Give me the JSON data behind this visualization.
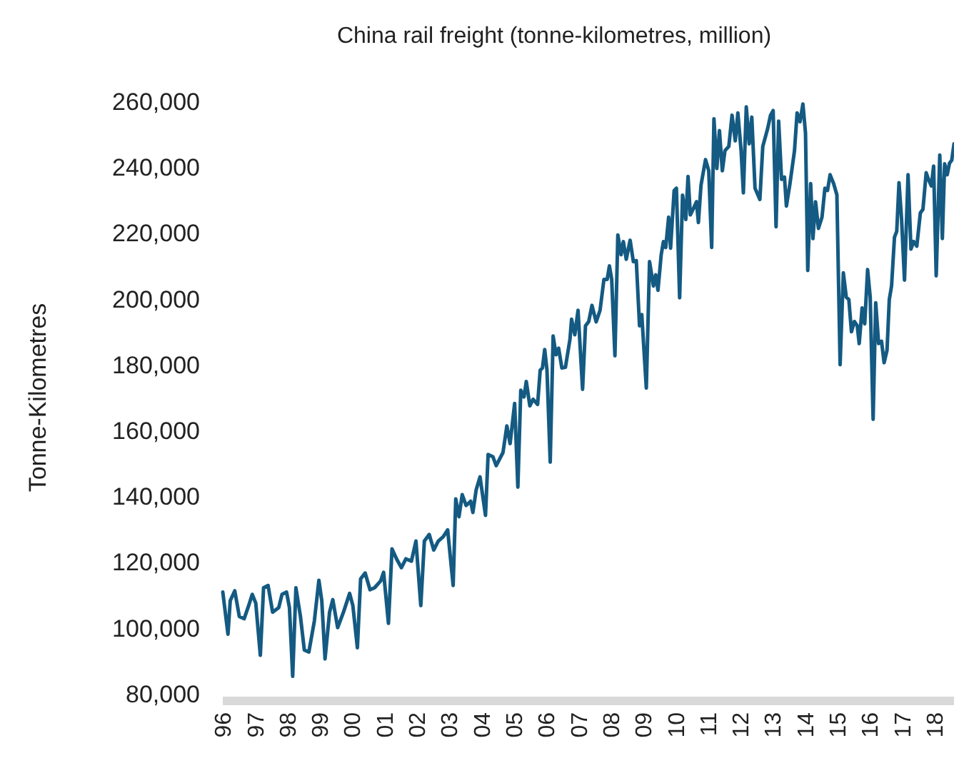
{
  "chart_data": {
    "type": "line",
    "title": "China rail freight (tonne-kilometres, million)",
    "ylabel": "Tonne-Kilometres",
    "xlim": [
      1996,
      2018.6
    ],
    "ylim": [
      80000,
      260000
    ],
    "xticks": [
      {
        "value": 1996,
        "label": "96"
      },
      {
        "value": 1997,
        "label": "97"
      },
      {
        "value": 1998,
        "label": "98"
      },
      {
        "value": 1999,
        "label": "99"
      },
      {
        "value": 2000,
        "label": "00"
      },
      {
        "value": 2001,
        "label": "01"
      },
      {
        "value": 2002,
        "label": "02"
      },
      {
        "value": 2003,
        "label": "03"
      },
      {
        "value": 2004,
        "label": "04"
      },
      {
        "value": 2005,
        "label": "05"
      },
      {
        "value": 2006,
        "label": "06"
      },
      {
        "value": 2007,
        "label": "07"
      },
      {
        "value": 2008,
        "label": "08"
      },
      {
        "value": 2009,
        "label": "09"
      },
      {
        "value": 2010,
        "label": "10"
      },
      {
        "value": 2011,
        "label": "11"
      },
      {
        "value": 2012,
        "label": "12"
      },
      {
        "value": 2013,
        "label": "13"
      },
      {
        "value": 2014,
        "label": "14"
      },
      {
        "value": 2015,
        "label": "15"
      },
      {
        "value": 2016,
        "label": "16"
      },
      {
        "value": 2017,
        "label": "17"
      },
      {
        "value": 2018,
        "label": "18"
      }
    ],
    "yticks": [
      {
        "value": 80000,
        "label": "80,000"
      },
      {
        "value": 100000,
        "label": "100,000"
      },
      {
        "value": 120000,
        "label": "120,000"
      },
      {
        "value": 140000,
        "label": "140,000"
      },
      {
        "value": 160000,
        "label": "160,000"
      },
      {
        "value": 180000,
        "label": "180,000"
      },
      {
        "value": 200000,
        "label": "200,000"
      },
      {
        "value": 220000,
        "label": "220,000"
      },
      {
        "value": 240000,
        "label": "240,000"
      },
      {
        "value": 260000,
        "label": "260,000"
      }
    ],
    "grid": false,
    "marker": "none",
    "line_style": "solid",
    "series": [
      {
        "color": "#145a82",
        "x": [
          1996.0,
          1996.16,
          1996.23,
          1996.37,
          1996.51,
          1996.66,
          1996.8,
          1996.91,
          1997.02,
          1997.16,
          1997.26,
          1997.4,
          1997.54,
          1997.73,
          1997.83,
          1997.97,
          1998.06,
          1998.16,
          1998.26,
          1998.4,
          1998.52,
          1998.66,
          1998.83,
          1998.97,
          1999.06,
          1999.16,
          1999.3,
          1999.4,
          1999.55,
          1999.73,
          1999.92,
          2000.02,
          2000.16,
          2000.26,
          2000.4,
          2000.55,
          2000.69,
          2000.88,
          2000.97,
          2001.12,
          2001.23,
          2001.37,
          2001.52,
          2001.66,
          2001.83,
          2001.97,
          2002.12,
          2002.23,
          2002.38,
          2002.52,
          2002.66,
          2002.81,
          2002.95,
          2003.12,
          2003.2,
          2003.3,
          2003.4,
          2003.52,
          2003.66,
          2003.73,
          2003.83,
          2003.95,
          2004.12,
          2004.2,
          2004.35,
          2004.45,
          2004.66,
          2004.78,
          2004.88,
          2005.02,
          2005.12,
          2005.21,
          2005.31,
          2005.38,
          2005.49,
          2005.59,
          2005.73,
          2005.81,
          2005.88,
          2005.95,
          2006.02,
          2006.12,
          2006.21,
          2006.3,
          2006.38,
          2006.48,
          2006.59,
          2006.73,
          2006.78,
          2006.88,
          2006.98,
          2007.12,
          2007.21,
          2007.31,
          2007.41,
          2007.54,
          2007.66,
          2007.78,
          2007.88,
          2007.95,
          2008.02,
          2008.12,
          2008.21,
          2008.31,
          2008.38,
          2008.47,
          2008.59,
          2008.69,
          2008.78,
          2008.88,
          2008.95,
          2009.09,
          2009.19,
          2009.31,
          2009.38,
          2009.45,
          2009.55,
          2009.62,
          2009.69,
          2009.78,
          2009.84,
          2009.95,
          2010.02,
          2010.12,
          2010.21,
          2010.31,
          2010.38,
          2010.45,
          2010.55,
          2010.64,
          2010.7,
          2010.78,
          2010.92,
          2011.02,
          2011.11,
          2011.18,
          2011.27,
          2011.35,
          2011.44,
          2011.52,
          2011.64,
          2011.74,
          2011.84,
          2011.92,
          2012.02,
          2012.09,
          2012.18,
          2012.27,
          2012.35,
          2012.45,
          2012.6,
          2012.69,
          2012.84,
          2012.93,
          2013.01,
          2013.1,
          2013.18,
          2013.27,
          2013.36,
          2013.42,
          2013.53,
          2013.67,
          2013.75,
          2013.84,
          2013.93,
          2014.01,
          2014.08,
          2014.17,
          2014.24,
          2014.32,
          2014.41,
          2014.52,
          2014.61,
          2014.69,
          2014.77,
          2014.88,
          2014.98,
          2015.08,
          2015.18,
          2015.27,
          2015.35,
          2015.43,
          2015.52,
          2015.61,
          2015.67,
          2015.76,
          2015.84,
          2015.93,
          2016.01,
          2016.1,
          2016.18,
          2016.27,
          2016.36,
          2016.44,
          2016.53,
          2016.6,
          2016.67,
          2016.76,
          2016.83,
          2016.9,
          2016.98,
          2017.07,
          2017.18,
          2017.27,
          2017.35,
          2017.45,
          2017.56,
          2017.64,
          2017.74,
          2017.81,
          2017.9,
          2017.97,
          2018.05,
          2018.16,
          2018.24,
          2018.31,
          2018.39,
          2018.46,
          2018.53,
          2018.6
        ],
        "values": [
          110900,
          98100,
          108300,
          111300,
          103500,
          102800,
          106800,
          110200,
          107500,
          91700,
          112200,
          112900,
          104800,
          106200,
          110200,
          110900,
          106200,
          85300,
          112200,
          103500,
          93300,
          92700,
          102100,
          114500,
          108200,
          90600,
          104800,
          108600,
          100100,
          104800,
          110500,
          106800,
          94000,
          114900,
          116700,
          111600,
          112200,
          114300,
          116900,
          101400,
          124000,
          121000,
          118300,
          121000,
          120300,
          126400,
          106800,
          126400,
          128400,
          123700,
          126400,
          127700,
          129800,
          112900,
          139200,
          133800,
          140500,
          137200,
          138500,
          135100,
          141900,
          145900,
          134200,
          152700,
          152000,
          149300,
          153300,
          161400,
          156000,
          168200,
          142800,
          172200,
          170200,
          174900,
          167500,
          169500,
          167900,
          178300,
          179000,
          184600,
          178300,
          150400,
          188700,
          183000,
          185000,
          179000,
          179200,
          187700,
          193800,
          189100,
          196500,
          172500,
          191800,
          193100,
          198000,
          193000,
          196500,
          205900,
          205900,
          210000,
          205900,
          182700,
          219400,
          213400,
          217400,
          212000,
          217800,
          211300,
          211600,
          191800,
          195200,
          172900,
          211300,
          203900,
          207300,
          202600,
          213400,
          217400,
          215600,
          224800,
          215400,
          232900,
          233600,
          200300,
          231500,
          224100,
          237200,
          225500,
          227500,
          229500,
          223200,
          234500,
          242300,
          238900,
          215600,
          254700,
          239600,
          251100,
          238900,
          245000,
          246300,
          255800,
          248000,
          256500,
          245000,
          232200,
          258300,
          247100,
          255200,
          233600,
          230200,
          246300,
          251700,
          255800,
          257200,
          221900,
          254000,
          236300,
          237000,
          228200,
          235000,
          245000,
          256500,
          253800,
          259200,
          250400,
          208600,
          235000,
          218300,
          229500,
          221400,
          224800,
          233600,
          232900,
          237700,
          235000,
          231600,
          180000,
          207900,
          200500,
          199800,
          190000,
          193100,
          191800,
          186400,
          197200,
          192400,
          208900,
          200500,
          163400,
          198800,
          186400,
          187100,
          180600,
          184400,
          199800,
          203900,
          218700,
          220500,
          235300,
          224100,
          205700,
          237700,
          215100,
          217400,
          216000,
          226100,
          227200,
          238300,
          236300,
          234300,
          240300,
          207000,
          243700,
          218300,
          241000,
          237700,
          241200,
          242100,
          247100
        ]
      }
    ]
  }
}
